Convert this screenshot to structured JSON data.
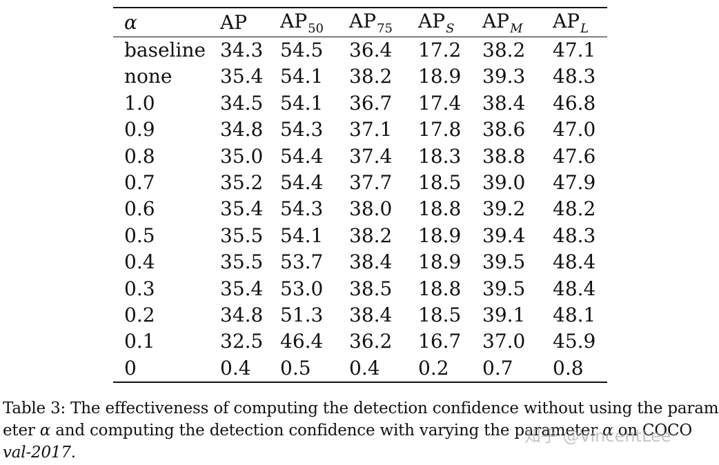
{
  "table": {
    "header": {
      "col0": "α",
      "ap": "AP",
      "ap50_base": "AP",
      "ap50_sub": "50",
      "ap75_base": "AP",
      "ap75_sub": "75",
      "aps_base": "AP",
      "aps_sub": "S",
      "apm_base": "AP",
      "apm_sub": "M",
      "apl_base": "AP",
      "apl_sub": "L"
    },
    "rows": [
      [
        "baseline",
        "34.3",
        "54.5",
        "36.4",
        "17.2",
        "38.2",
        "47.1"
      ],
      [
        "none",
        "35.4",
        "54.1",
        "38.2",
        "18.9",
        "39.3",
        "48.3"
      ],
      [
        "1.0",
        "34.5",
        "54.1",
        "36.7",
        "17.4",
        "38.4",
        "46.8"
      ],
      [
        "0.9",
        "34.8",
        "54.3",
        "37.1",
        "17.8",
        "38.6",
        "47.0"
      ],
      [
        "0.8",
        "35.0",
        "54.4",
        "37.4",
        "18.3",
        "38.8",
        "47.6"
      ],
      [
        "0.7",
        "35.2",
        "54.4",
        "37.7",
        "18.5",
        "39.0",
        "47.9"
      ],
      [
        "0.6",
        "35.4",
        "54.3",
        "38.0",
        "18.8",
        "39.2",
        "48.2"
      ],
      [
        "0.5",
        "35.5",
        "54.1",
        "38.2",
        "18.9",
        "39.4",
        "48.3"
      ],
      [
        "0.4",
        "35.5",
        "53.7",
        "38.4",
        "18.9",
        "39.5",
        "48.4"
      ],
      [
        "0.3",
        "35.4",
        "53.0",
        "38.5",
        "18.8",
        "39.5",
        "48.4"
      ],
      [
        "0.2",
        "34.8",
        "51.3",
        "38.4",
        "18.5",
        "39.1",
        "48.1"
      ],
      [
        "0.1",
        "32.5",
        "46.4",
        "36.2",
        "16.7",
        "37.0",
        "45.9"
      ],
      [
        "0",
        "0.4",
        "0.5",
        "0.4",
        "0.2",
        "0.7",
        "0.8"
      ]
    ]
  },
  "caption": {
    "line1": "Table 3:  The effectiveness of computing the detection confidence without using the param-",
    "line2_pre": "eter ",
    "line2_alpha": "α",
    "line2_mid": " and computing the detection confidence with varying the parameter ",
    "line2_alpha2": "α",
    "line2_post": " on COCO",
    "line3_em": "val-2017",
    "line3_post": "."
  },
  "watermark": "知乎 @VincentLee"
}
